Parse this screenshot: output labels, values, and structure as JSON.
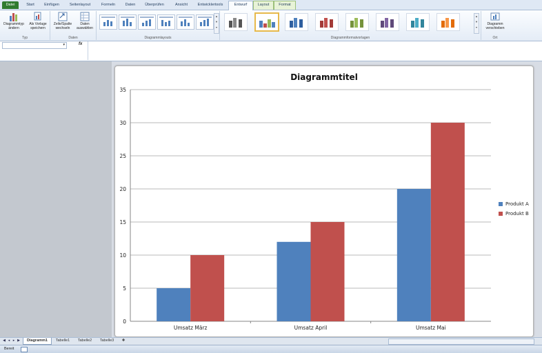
{
  "ribbon_tabs": [
    "Datei",
    "Start",
    "Einfügen",
    "Seitenlayout",
    "Formeln",
    "Daten",
    "Überprüfen",
    "Ansicht",
    "Entwicklertools",
    "Entwurf",
    "Layout",
    "Format"
  ],
  "ribbon": {
    "typ": {
      "change_type": "Diagrammtyp ändern",
      "save_template": "Als Vorlage speichern",
      "label": "Typ"
    },
    "daten": {
      "switch": "Zeile/Spalte wechseln",
      "select": "Daten auswählen",
      "label": "Daten"
    },
    "layouts_label": "Diagrammlayouts",
    "styles_label": "Diagrammformatvorlagen",
    "ort": {
      "move": "Diagramm verschieben",
      "label": "Ort"
    }
  },
  "formula_bar": {
    "name_box": "",
    "fx": "fx",
    "formula": ""
  },
  "chart_data": {
    "type": "bar",
    "title": "Diagrammtitel",
    "categories": [
      "Umsatz März",
      "Umsatz April",
      "Umsatz Mai"
    ],
    "series": [
      {
        "name": "Produkt A",
        "values": [
          5,
          12,
          20
        ],
        "color": "#4f81bd"
      },
      {
        "name": "Produkt B",
        "values": [
          10,
          15,
          30
        ],
        "color": "#c0504d"
      }
    ],
    "ylim": [
      0,
      35
    ],
    "yticks": [
      0,
      5,
      10,
      15,
      20,
      25,
      30,
      35
    ],
    "grid": true,
    "legend": "right"
  },
  "sheet_tabs": [
    "Diagramm1",
    "Tabelle1",
    "Tabelle2",
    "Tabelle3"
  ],
  "status": "Bereit"
}
